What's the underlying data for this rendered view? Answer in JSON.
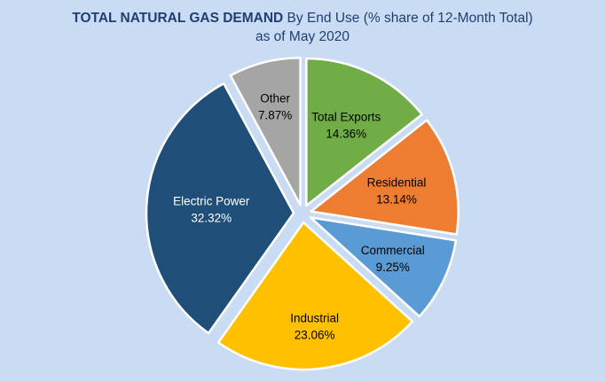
{
  "title": {
    "bold": "TOTAL NATURAL GAS DEMAND",
    "rest": " By End Use (% share of 12-Month Total)",
    "line2": "as of May 2020"
  },
  "chart_data": {
    "type": "pie",
    "title": "TOTAL NATURAL GAS DEMAND By End Use (% share of 12-Month Total) as of May 2020",
    "slices": [
      {
        "label": "Total Exports",
        "value": 14.36,
        "value_label": "14.36%",
        "color": "#70ad47",
        "text_color": "#000000"
      },
      {
        "label": "Residential",
        "value": 13.14,
        "value_label": "13.14%",
        "color": "#ed7d31",
        "text_color": "#000000"
      },
      {
        "label": "Commercial",
        "value": 9.25,
        "value_label": "9.25%",
        "color": "#5b9bd5",
        "text_color": "#000000"
      },
      {
        "label": "Industrial",
        "value": 23.06,
        "value_label": "23.06%",
        "color": "#ffc000",
        "text_color": "#000000"
      },
      {
        "label": "Electric Power",
        "value": 32.32,
        "value_label": "32.32%",
        "color": "#1f4e79",
        "text_color": "#ffffff"
      },
      {
        "label": "Other",
        "value": 7.87,
        "value_label": "7.87%",
        "color": "#a5a5a5",
        "text_color": "#000000"
      }
    ],
    "start": "12 o'clock, clockwise",
    "exploded": true,
    "legend": "none (labels on slices)"
  }
}
